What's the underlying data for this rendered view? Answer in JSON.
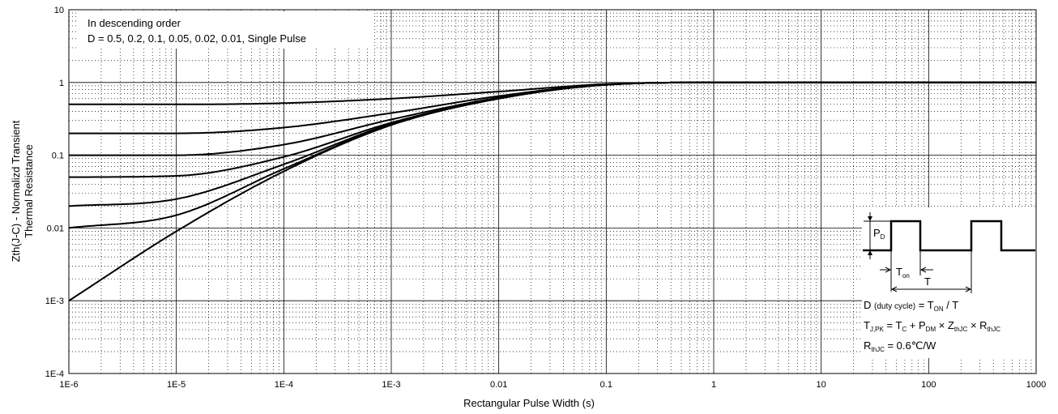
{
  "chart_data": {
    "type": "line",
    "x_scale": "log",
    "y_scale": "log",
    "xlabel": "Rectangular Pulse Width (s)",
    "ylabel_line1": "Zth(J-C) - Normalizd Transient",
    "ylabel_line2": "Thermal Resistance",
    "xlim": [
      1e-06,
      1000
    ],
    "ylim": [
      0.0001,
      10
    ],
    "x_tick_labels": [
      "1E-6",
      "1E-5",
      "1E-4",
      "1E-3",
      "0.01",
      "0.1",
      "1",
      "10",
      "100",
      "1000"
    ],
    "y_tick_labels": [
      "1E-4",
      "1E-3",
      "0.01",
      "0.1",
      "1",
      "10"
    ],
    "grid": true,
    "legend": {
      "line1": "In descending order",
      "line2": "D = 0.5, 0.2, 0.1, 0.05, 0.02, 0.01, Single Pulse",
      "placement": "top-left"
    },
    "x": [
      1e-06,
      1e-05,
      0.0001,
      0.001,
      0.01,
      0.1,
      1,
      10,
      100,
      1000
    ],
    "series": [
      {
        "values": [
          0.5,
          0.5,
          0.52,
          0.6,
          0.75,
          0.95,
          1,
          1,
          1,
          1
        ]
      },
      {
        "values": [
          0.2,
          0.2,
          0.24,
          0.38,
          0.65,
          0.94,
          1,
          1,
          1,
          1
        ]
      },
      {
        "values": [
          0.1,
          0.1,
          0.14,
          0.31,
          0.62,
          0.93,
          1,
          1,
          1,
          1
        ]
      },
      {
        "values": [
          0.05,
          0.052,
          0.095,
          0.28,
          0.61,
          0.93,
          1,
          1,
          1,
          1
        ]
      },
      {
        "values": [
          0.02,
          0.025,
          0.075,
          0.27,
          0.6,
          0.93,
          1,
          1,
          1,
          1
        ]
      },
      {
        "values": [
          0.01,
          0.015,
          0.065,
          0.265,
          0.6,
          0.93,
          1,
          1,
          1,
          1
        ]
      },
      {
        "values": [
          0.001,
          0.009,
          0.06,
          0.26,
          0.6,
          0.93,
          1,
          1,
          1,
          1
        ]
      }
    ],
    "inset": {
      "pd_label": "P",
      "pd_sub": "D",
      "ton_label": "T",
      "ton_sub": "on",
      "t_label": "T",
      "eq1_a": "D ",
      "eq1_small": "(duty cycle)",
      "eq1_b": " = T",
      "eq1_sub": "ON",
      "eq1_c": " / T",
      "eq2_a": "T",
      "eq2_a_sub": "J,PK",
      "eq2_b": " = T",
      "eq2_b_sub": "C",
      "eq2_c": " + P",
      "eq2_c_sub": "DM",
      "eq2_d": " × Z",
      "eq2_d_sub": "thJC",
      "eq2_e": " × R",
      "eq2_e_sub": "thJC",
      "eq3_a": "R",
      "eq3_sub": "thJC",
      "eq3_b": " = 0.6℃/W"
    }
  }
}
